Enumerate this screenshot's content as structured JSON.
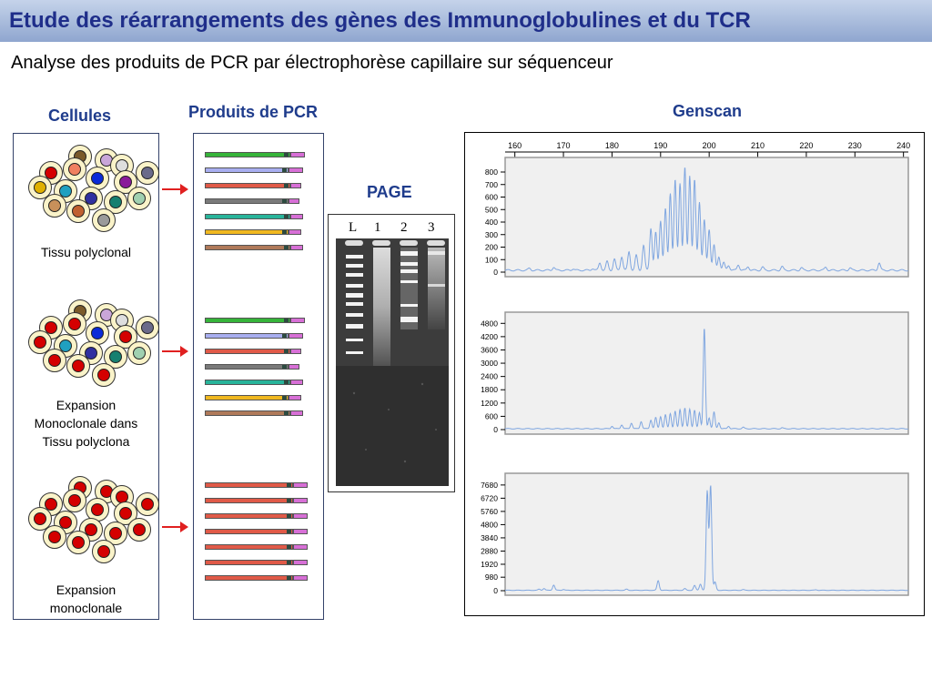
{
  "header": {
    "title": "Etude des réarrangements des gènes des Immunoglobulines et du TCR",
    "subtitle": "Analyse des produits de PCR par électrophorèse capillaire sur séquenceur"
  },
  "columns": {
    "cells": "Cellules",
    "pcr": "Produits de PCR",
    "page": "PAGE",
    "genscan": "Genscan"
  },
  "captions": {
    "row1": "Tissu polyclonal",
    "row2": "Expansion\nMonoclonale dans\nTissu polyclona",
    "row3": "Expansion\nmonoclonale"
  },
  "gel": {
    "lanes": [
      "L",
      "1",
      "2",
      "3"
    ]
  },
  "colors": {
    "trace": "#7fa6e0",
    "arrow": "#e02020",
    "header_text": "#1f3c8c",
    "tail": "#d76fd6"
  },
  "chart_data": [
    {
      "type": "line",
      "title": "",
      "x_ticks": [
        160,
        170,
        180,
        190,
        200,
        210,
        220,
        230,
        240
      ],
      "y_ticks": [
        800,
        700,
        600,
        500,
        400,
        300,
        200,
        100,
        0
      ],
      "xlim": [
        158,
        241
      ],
      "ylim": [
        0,
        880
      ],
      "series": [
        {
          "peaks": [
            [
              163,
              15
            ],
            [
              168,
              25
            ],
            [
              172,
              12
            ],
            [
              176,
              15
            ],
            [
              177.5,
              60
            ],
            [
              179,
              70
            ],
            [
              180.5,
              90
            ],
            [
              182,
              110
            ],
            [
              183.5,
              150
            ],
            [
              185,
              120
            ],
            [
              186.5,
              200
            ],
            [
              188,
              340
            ],
            [
              189,
              300
            ],
            [
              190,
              400
            ],
            [
              191,
              490
            ],
            [
              192,
              620
            ],
            [
              193,
              720
            ],
            [
              194,
              700
            ],
            [
              195,
              820
            ],
            [
              196,
              760
            ],
            [
              197,
              720
            ],
            [
              198,
              550
            ],
            [
              199,
              400
            ],
            [
              200,
              330
            ],
            [
              201,
              200
            ],
            [
              202,
              110
            ],
            [
              203,
              60
            ],
            [
              204,
              40
            ],
            [
              206,
              45
            ],
            [
              208,
              30
            ],
            [
              211,
              25
            ],
            [
              215,
              30
            ],
            [
              219,
              20
            ],
            [
              224,
              25
            ],
            [
              229,
              20
            ],
            [
              235,
              60
            ]
          ],
          "peak_width": 0.35,
          "baseline": 15
        }
      ]
    },
    {
      "type": "line",
      "title": "",
      "y_ticks": [
        4800,
        4200,
        3600,
        3000,
        2400,
        1800,
        1200,
        600,
        0
      ],
      "xlim": [
        158,
        241
      ],
      "ylim": [
        0,
        5100
      ],
      "series": [
        {
          "peaks": [
            [
              180,
              120
            ],
            [
              182,
              180
            ],
            [
              184,
              260
            ],
            [
              186,
              330
            ],
            [
              188,
              400
            ],
            [
              189,
              500
            ],
            [
              190,
              560
            ],
            [
              191,
              620
            ],
            [
              192,
              700
            ],
            [
              193,
              780
            ],
            [
              194,
              880
            ],
            [
              195,
              920
            ],
            [
              196,
              900
            ],
            [
              197,
              820
            ],
            [
              198,
              750
            ],
            [
              199,
              4550
            ],
            [
              200,
              500
            ],
            [
              201,
              750
            ],
            [
              202,
              280
            ],
            [
              204,
              120
            ],
            [
              207,
              60
            ],
            [
              215,
              40
            ]
          ],
          "peak_width": 0.3,
          "baseline": 40
        }
      ]
    },
    {
      "type": "line",
      "title": "",
      "y_ticks": [
        7680,
        6720,
        5760,
        4800,
        3840,
        2880,
        1920,
        980,
        0
      ],
      "xlim": [
        158,
        241
      ],
      "ylim": [
        0,
        8200
      ],
      "series": [
        {
          "peaks": [
            [
              165,
              80
            ],
            [
              166,
              130
            ],
            [
              168,
              380
            ],
            [
              170,
              60
            ],
            [
              183,
              80
            ],
            [
              189.5,
              700
            ],
            [
              195,
              120
            ],
            [
              197,
              350
            ],
            [
              198.2,
              450
            ],
            [
              199.6,
              7200
            ],
            [
              200.3,
              7600
            ],
            [
              201.2,
              600
            ],
            [
              207,
              50
            ],
            [
              222,
              40
            ]
          ],
          "peak_width": 0.32,
          "baseline": 30
        }
      ]
    }
  ]
}
